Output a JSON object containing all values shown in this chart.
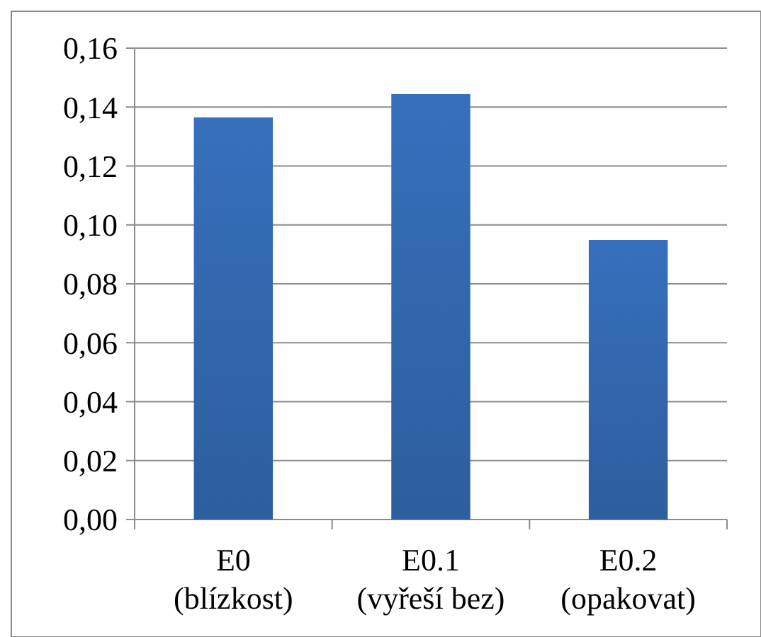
{
  "chart_data": {
    "type": "bar",
    "categories": [
      "E0\n(blízkost)",
      "E0.1\n(vyřeší bez)",
      "E0.2\n(opakovat)"
    ],
    "values": [
      0.1365,
      0.1444,
      0.0949
    ],
    "color": "#3670bc",
    "ylim": [
      0,
      0.16
    ],
    "yticks": [
      {
        "value": 0,
        "label": "0,00"
      },
      {
        "value": 0.02,
        "label": "0,02"
      },
      {
        "value": 0.04,
        "label": "0,04"
      },
      {
        "value": 0.06,
        "label": "0,06"
      },
      {
        "value": 0.08,
        "label": "0,08"
      },
      {
        "value": 0.1,
        "label": "0,10"
      },
      {
        "value": 0.12,
        "label": "0,12"
      },
      {
        "value": 0.14,
        "label": "0,14"
      },
      {
        "value": 0.16,
        "label": "0,16"
      }
    ],
    "grid": "y"
  }
}
